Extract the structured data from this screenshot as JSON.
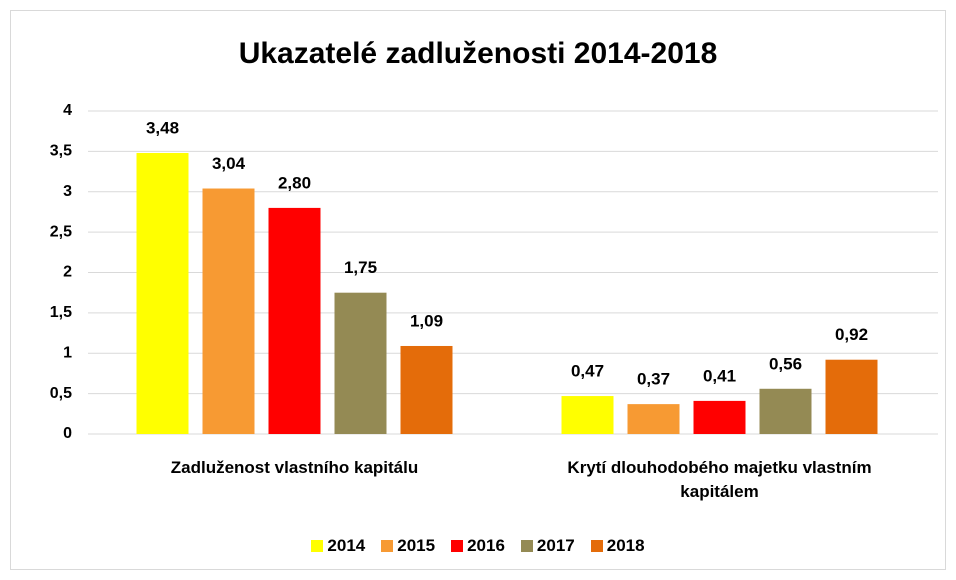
{
  "chart_data": {
    "type": "bar",
    "title": "Ukazatelé zadluženosti 2014-2018",
    "categories": [
      "Zadluženost vlastního kapitálu",
      "Krytí dlouhodobého majetku vlastním kapitálem"
    ],
    "series": [
      {
        "name": "2014",
        "color": "#ffff00",
        "values": [
          3.48,
          0.47
        ],
        "value_labels": [
          "3,48",
          "0,47"
        ]
      },
      {
        "name": "2015",
        "color": "#f79a33",
        "values": [
          3.04,
          0.37
        ],
        "value_labels": [
          "3,04",
          "0,37"
        ]
      },
      {
        "name": "2016",
        "color": "#ff0000",
        "values": [
          2.8,
          0.41
        ],
        "value_labels": [
          "2,80",
          "0,41"
        ]
      },
      {
        "name": "2017",
        "color": "#948a54",
        "values": [
          1.75,
          0.56
        ],
        "value_labels": [
          "1,75",
          "0,56"
        ]
      },
      {
        "name": "2018",
        "color": "#e46c0a",
        "values": [
          1.09,
          0.92
        ],
        "value_labels": [
          "1,09",
          "0,92"
        ]
      }
    ],
    "ylim": [
      0,
      4
    ],
    "yticks": [
      0,
      {
        "value": 0.5,
        "label": "0,5"
      },
      1,
      {
        "value": 1.5,
        "label": "1,5"
      },
      2,
      {
        "value": 2.5,
        "label": "2,5"
      },
      3,
      {
        "value": 3.5,
        "label": "3,5"
      },
      4
    ],
    "grid": true,
    "legend": "bottom"
  }
}
